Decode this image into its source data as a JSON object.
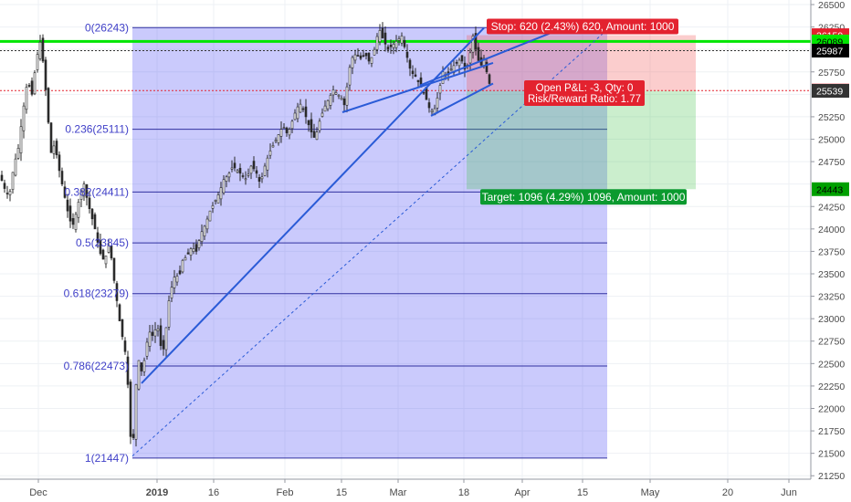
{
  "chart_data": {
    "type": "candlestick",
    "x_axis": {
      "labels": [
        "Dec",
        "2019",
        "16",
        "Feb",
        "15",
        "Mar",
        "18",
        "Apr",
        "15",
        "May",
        "20",
        "Jun"
      ]
    },
    "y_axis": {
      "ticks": [
        21250,
        21500,
        21750,
        22000,
        22250,
        22500,
        22750,
        23000,
        23250,
        23500,
        23750,
        24000,
        24250,
        24500,
        24750,
        25000,
        25250,
        25500,
        25750,
        26000,
        26250,
        26500
      ],
      "range": [
        21100,
        26570
      ],
      "price_badges": [
        {
          "value": "26159",
          "color": "#e3222f",
          "text_color": "#ffffff"
        },
        {
          "value": "26089",
          "color": "#00e600",
          "text_color": "#000000"
        },
        {
          "value": "25987",
          "color": "#000000",
          "text_color": "#ffffff"
        },
        {
          "value": "25542",
          "color": "#e3222f",
          "text_color": "#ffffff"
        },
        {
          "value": "25539",
          "color": "#333333",
          "text_color": "#ffffff"
        },
        {
          "value": "24443",
          "color": "#00a000",
          "text_color": "#000000"
        }
      ]
    },
    "fibonacci_levels": [
      {
        "ratio": "0",
        "price": 26243,
        "label": "0(26243)"
      },
      {
        "ratio": "0.236",
        "price": 25111,
        "label": "0.236(25111)"
      },
      {
        "ratio": "0.382",
        "price": 24411,
        "label": "0.382(24411)"
      },
      {
        "ratio": "0.5",
        "price": 23845,
        "label": "0.5(23845)"
      },
      {
        "ratio": "0.618",
        "price": 23279,
        "label": "0.618(23279)"
      },
      {
        "ratio": "0.786",
        "price": 22473,
        "label": "0.786(22473)"
      },
      {
        "ratio": "1",
        "price": 21447,
        "label": "1(21447)"
      }
    ],
    "horizontal_lines": [
      {
        "price": 26089,
        "color": "#00e600"
      },
      {
        "price": 25987,
        "color": "#333333"
      },
      {
        "price": 25542,
        "color": "#e3222f"
      }
    ],
    "position": {
      "entry": 25539,
      "stop": 26159,
      "target": 24443,
      "stop_label": "Stop: 620 (2.43%) 620, Amount: 1000",
      "target_label": "Target: 1096 (4.29%) 1096, Amount: 1000",
      "pnl_label": "Open P&L: -3, Qty: 0",
      "ratio_label": "Risk/Reward Ratio: 1.77"
    },
    "price_path": [
      [
        0,
        24600
      ],
      [
        5,
        24450
      ],
      [
        10,
        24350
      ],
      [
        15,
        24700
      ],
      [
        20,
        24900
      ],
      [
        25,
        25300
      ],
      [
        30,
        25650
      ],
      [
        35,
        25500
      ],
      [
        40,
        25900
      ],
      [
        44,
        26080
      ],
      [
        48,
        25800
      ],
      [
        52,
        25300
      ],
      [
        56,
        24850
      ],
      [
        60,
        24950
      ],
      [
        64,
        24700
      ],
      [
        68,
        24500
      ],
      [
        72,
        24300
      ],
      [
        76,
        24100
      ],
      [
        80,
        24050
      ],
      [
        84,
        24200
      ],
      [
        88,
        24400
      ],
      [
        92,
        24500
      ],
      [
        96,
        24300
      ],
      [
        100,
        24150
      ],
      [
        104,
        24000
      ],
      [
        108,
        23800
      ],
      [
        112,
        23650
      ],
      [
        116,
        23700
      ],
      [
        120,
        23850
      ],
      [
        124,
        23500
      ],
      [
        128,
        23200
      ],
      [
        132,
        22900
      ],
      [
        136,
        22700
      ],
      [
        139,
        22500
      ],
      [
        142,
        21800
      ],
      [
        145,
        21460
      ],
      [
        148,
        22100
      ],
      [
        151,
        22600
      ],
      [
        154,
        22400
      ],
      [
        157,
        22450
      ],
      [
        160,
        22700
      ],
      [
        164,
        22850
      ],
      [
        168,
        22800
      ],
      [
        172,
        22950
      ],
      [
        176,
        22700
      ],
      [
        180,
        22650
      ],
      [
        184,
        23150
      ],
      [
        188,
        23350
      ],
      [
        192,
        23500
      ],
      [
        196,
        23450
      ],
      [
        200,
        23650
      ],
      [
        205,
        23700
      ],
      [
        210,
        23800
      ],
      [
        215,
        23750
      ],
      [
        220,
        23950
      ],
      [
        225,
        24050
      ],
      [
        230,
        24200
      ],
      [
        235,
        24300
      ],
      [
        240,
        24400
      ],
      [
        245,
        24550
      ],
      [
        250,
        24600
      ],
      [
        255,
        24700
      ],
      [
        260,
        24650
      ],
      [
        265,
        24600
      ],
      [
        270,
        24550
      ],
      [
        275,
        24700
      ],
      [
        280,
        24650
      ],
      [
        285,
        24500
      ],
      [
        290,
        24700
      ],
      [
        295,
        24850
      ],
      [
        300,
        24950
      ],
      [
        305,
        25050
      ],
      [
        310,
        25150
      ],
      [
        315,
        25050
      ],
      [
        320,
        25200
      ],
      [
        325,
        25350
      ],
      [
        330,
        25400
      ],
      [
        335,
        25250
      ],
      [
        340,
        25100
      ],
      [
        345,
        25000
      ],
      [
        350,
        25200
      ],
      [
        355,
        25350
      ],
      [
        360,
        25450
      ],
      [
        365,
        25550
      ],
      [
        370,
        25500
      ],
      [
        375,
        25450
      ],
      [
        378,
        25350
      ],
      [
        381,
        25700
      ],
      [
        385,
        25900
      ],
      [
        390,
        25950
      ],
      [
        395,
        25900
      ],
      [
        400,
        25950
      ],
      [
        405,
        25850
      ],
      [
        410,
        26000
      ],
      [
        415,
        26240
      ],
      [
        420,
        26100
      ],
      [
        425,
        26000
      ],
      [
        430,
        26050
      ],
      [
        435,
        26100
      ],
      [
        440,
        26150
      ],
      [
        445,
        25950
      ],
      [
        450,
        25750
      ],
      [
        455,
        25700
      ],
      [
        460,
        25600
      ],
      [
        465,
        25500
      ],
      [
        470,
        25350
      ],
      [
        475,
        25300
      ],
      [
        480,
        25500
      ],
      [
        485,
        25750
      ],
      [
        490,
        25700
      ],
      [
        495,
        25800
      ],
      [
        500,
        25850
      ],
      [
        505,
        25900
      ],
      [
        510,
        25750
      ],
      [
        514,
        25900
      ],
      [
        518,
        26150
      ],
      [
        522,
        25950
      ],
      [
        526,
        25800
      ],
      [
        530,
        25900
      ],
      [
        534,
        25700
      ],
      [
        538,
        25540
      ]
    ],
    "trendlines": [
      {
        "from": [
          155,
          22280
        ],
        "to": [
          530,
          26240
        ],
        "style": "solid"
      },
      {
        "from": [
          145,
          21470
        ],
        "to": [
          665,
          26220
        ],
        "style": "dashed"
      },
      {
        "from": [
          375,
          25300
        ],
        "to": [
          540,
          25850
        ],
        "style": "solid"
      },
      {
        "from": [
          460,
          25600
        ],
        "to": [
          612,
          26220
        ],
        "style": "solid"
      },
      {
        "from": [
          472,
          25260
        ],
        "to": [
          540,
          25620
        ],
        "style": "solid"
      }
    ]
  }
}
